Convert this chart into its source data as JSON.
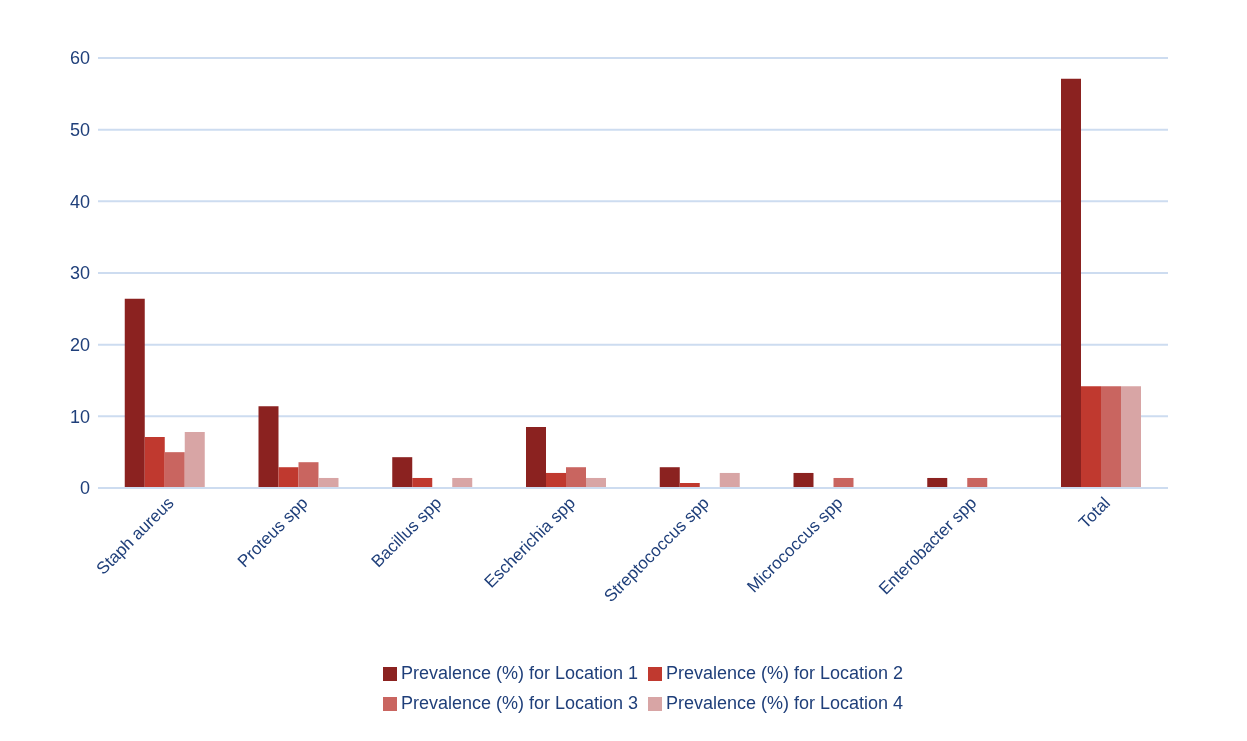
{
  "chart_data": {
    "type": "bar",
    "categories": [
      "Staph aureus",
      "Proteus spp",
      "Bacillus spp",
      "Escherichia spp",
      "Streptococcus spp",
      "Micrococcus spp",
      "Enterobacter spp",
      "Total"
    ],
    "series": [
      {
        "name": "Prevalence (%) for Location 1",
        "color": "#8b2220",
        "values": [
          26.4,
          11.4,
          4.3,
          8.5,
          2.9,
          2.1,
          1.4,
          57.1
        ]
      },
      {
        "name": "Prevalence (%) for Location 2",
        "color": "#c0392f",
        "values": [
          7.1,
          2.9,
          1.4,
          2.1,
          0.7,
          0,
          0,
          14.2
        ]
      },
      {
        "name": "Prevalence (%) for Location 3",
        "color": "#c96560",
        "values": [
          5.0,
          3.6,
          0,
          2.9,
          0,
          1.4,
          1.4,
          14.2
        ]
      },
      {
        "name": "Prevalence (%) for Location 4",
        "color": "#d8a5a5",
        "values": [
          7.8,
          1.4,
          1.4,
          1.4,
          2.1,
          0,
          0,
          14.2
        ]
      }
    ],
    "ylim": [
      0,
      60
    ],
    "yticks": [
      0,
      10,
      20,
      30,
      40,
      50,
      60
    ],
    "grid": "y",
    "legend": "bottom"
  }
}
